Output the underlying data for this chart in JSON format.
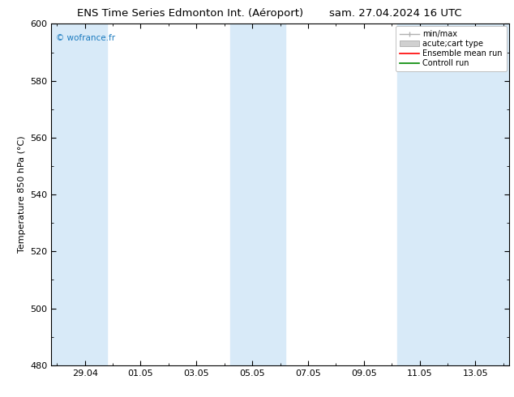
{
  "title_left": "ENS Time Series Edmonton Int. (Aéroport)",
  "title_right": "sam. 27.04.2024 16 UTC",
  "ylabel": "Temperature 850 hPa (°C)",
  "ylim": [
    480,
    600
  ],
  "yticks": [
    480,
    500,
    520,
    540,
    560,
    580,
    600
  ],
  "x_tick_labels": [
    "29.04",
    "01.05",
    "03.05",
    "05.05",
    "07.05",
    "09.05",
    "11.05",
    "13.05"
  ],
  "x_tick_positions": [
    1.0,
    3.0,
    5.0,
    7.0,
    9.0,
    11.0,
    13.0,
    15.0
  ],
  "xlim": [
    -0.2,
    16.2
  ],
  "shaded_bands": [
    {
      "x_start": -0.2,
      "x_end": 1.8
    },
    {
      "x_start": 6.2,
      "x_end": 8.2
    },
    {
      "x_start": 12.2,
      "x_end": 16.2
    }
  ],
  "shade_color": "#d8eaf8",
  "shade_alpha": 1.0,
  "bg_color": "#ffffff",
  "plot_bg_color": "#ffffff",
  "watermark": "© wofrance.fr",
  "watermark_color": "#1a7abf",
  "legend_items": [
    {
      "label": "min/max",
      "color": "#b0b0b0",
      "type": "errorbar"
    },
    {
      "label": "acute;cart type",
      "color": "#c8c8c8",
      "type": "bar"
    },
    {
      "label": "Ensemble mean run",
      "color": "#ff0000",
      "type": "line"
    },
    {
      "label": "Controll run",
      "color": "#008800",
      "type": "line"
    }
  ],
  "title_fontsize": 9.5,
  "axis_label_fontsize": 8,
  "tick_fontsize": 8,
  "legend_fontsize": 7
}
